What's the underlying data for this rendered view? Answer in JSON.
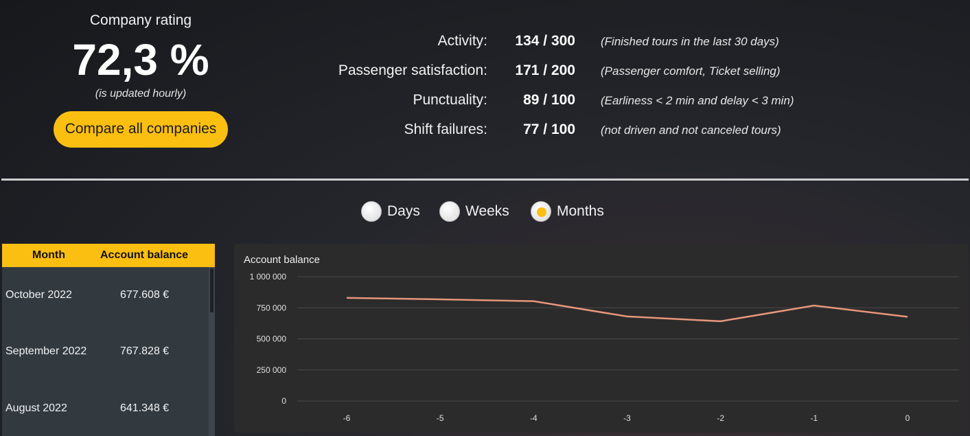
{
  "rating": {
    "title": "Company rating",
    "value": "72,3 %",
    "note": "(is updated hourly)",
    "compare_label": "Compare all companies"
  },
  "stats": [
    {
      "label": "Activity:",
      "value": "134 / 300",
      "desc": "(Finished tours in the last 30 days)"
    },
    {
      "label": "Passenger satisfaction:",
      "value": "171 / 200",
      "desc": "(Passenger comfort, Ticket selling)"
    },
    {
      "label": "Punctuality:",
      "value": "89 / 100",
      "desc": "(Earliness < 2 min and delay < 3 min)"
    },
    {
      "label": "Shift failures:",
      "value": "77 / 100",
      "desc": "(not driven and not canceled tours)"
    }
  ],
  "period": {
    "options": [
      "Days",
      "Weeks",
      "Months"
    ],
    "selected": "Months"
  },
  "table": {
    "headers": [
      "Month",
      "Account balance"
    ],
    "rows": [
      {
        "month": "October 2022",
        "balance": "677.608 €"
      },
      {
        "month": "September 2022",
        "balance": "767.828 €"
      },
      {
        "month": "August 2022",
        "balance": "641.348 €"
      }
    ]
  },
  "colors": {
    "accent": "#fbbf12",
    "line": "#e8967a",
    "panel": "#2b2b2b"
  },
  "chart_data": {
    "type": "line",
    "title": "Account balance",
    "x": [
      -6,
      -5,
      -4,
      -3,
      -2,
      -1,
      0
    ],
    "series": [
      {
        "values": [
          830000,
          818000,
          803000,
          680000,
          641348,
          767828,
          677608
        ]
      }
    ],
    "ylim": [
      0,
      1000000
    ],
    "yticks": [
      0,
      250000,
      500000,
      750000,
      1000000
    ],
    "ytick_labels": [
      "0",
      "250 000",
      "500 000",
      "750 000",
      "1 000 000"
    ],
    "xtick_labels": [
      "-6",
      "-5",
      "-4",
      "-3",
      "-2",
      "-1",
      "0"
    ],
    "grid": true
  }
}
